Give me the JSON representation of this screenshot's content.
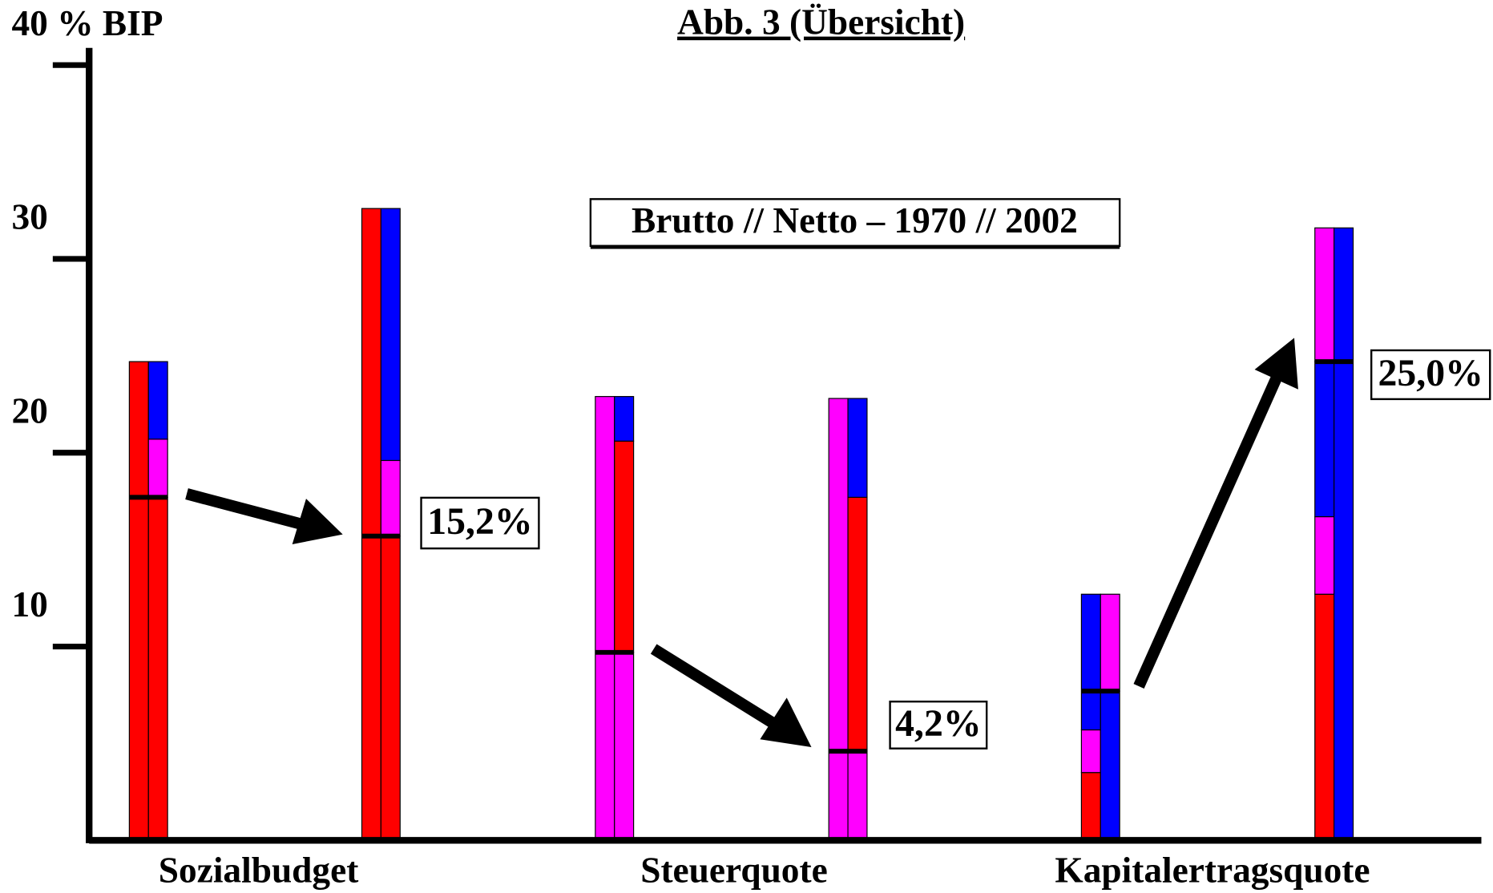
{
  "chart_data": {
    "type": "split-stacked-bar",
    "title": "Abb. 3 (Übersicht)",
    "subtitle": "Brutto // Netto – 1970 // 2002",
    "ylim": [
      0,
      40
    ],
    "yticks": [
      10,
      20,
      30,
      {
        "value": 40,
        "label": "40 % BIP"
      }
    ],
    "groups": [
      {
        "name": "Sozialbudget",
        "change_label": "15,2%",
        "bars": [
          {
            "left": [
              {
                "color": "#ff0000",
                "value": 24.7
              }
            ],
            "right": [
              {
                "color": "#ff0000",
                "value": 17.7
              },
              {
                "color": "#ff00ff",
                "value": 3.0
              },
              {
                "color": "#0000ff",
                "value": 4.0
              }
            ],
            "netto": 17.7
          },
          {
            "left": [
              {
                "color": "#ff0000",
                "value": 32.6
              }
            ],
            "right": [
              {
                "color": "#ff0000",
                "value": 15.7
              },
              {
                "color": "#ff00ff",
                "value": 3.9
              },
              {
                "color": "#0000ff",
                "value": 13.0
              }
            ],
            "netto": 15.7
          }
        ]
      },
      {
        "name": "Steuerquote",
        "change_label": "4,2%",
        "bars": [
          {
            "left": [
              {
                "color": "#ff00ff",
                "value": 22.9
              }
            ],
            "right": [
              {
                "color": "#ff00ff",
                "value": 9.7
              },
              {
                "color": "#ff0000",
                "value": 10.9
              },
              {
                "color": "#0000ff",
                "value": 2.3
              }
            ],
            "netto": 9.7
          },
          {
            "left": [
              {
                "color": "#ff00ff",
                "value": 22.8
              }
            ],
            "right": [
              {
                "color": "#ff00ff",
                "value": 4.6
              },
              {
                "color": "#ff0000",
                "value": 13.1
              },
              {
                "color": "#0000ff",
                "value": 5.1
              }
            ],
            "netto": 4.6
          }
        ]
      },
      {
        "name": "Kapitalertragsquote",
        "change_label": "25,0%",
        "bars": [
          {
            "left": [
              {
                "color": "#ff0000",
                "value": 3.5
              },
              {
                "color": "#ff00ff",
                "value": 2.2
              },
              {
                "color": "#0000ff",
                "value": 7.0
              }
            ],
            "right": [
              {
                "color": "#0000ff",
                "value": 7.7
              },
              {
                "color": "#ff00ff",
                "value": 5.0
              }
            ],
            "netto": 7.7
          },
          {
            "left": [
              {
                "color": "#ff0000",
                "value": 12.7
              },
              {
                "color": "#ff00ff",
                "value": 4.0
              },
              {
                "color": "#0000ff",
                "value": 8.0
              },
              {
                "color": "#ff00ff",
                "value": 6.9
              }
            ],
            "right": [
              {
                "color": "#0000ff",
                "value": 31.6
              }
            ],
            "netto": 24.7
          }
        ]
      }
    ]
  }
}
